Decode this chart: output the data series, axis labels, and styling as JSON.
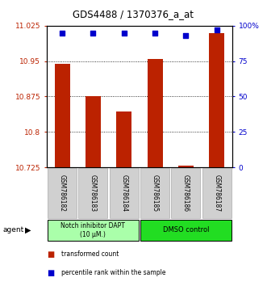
{
  "title": "GDS4488 / 1370376_a_at",
  "samples": [
    "GSM786182",
    "GSM786183",
    "GSM786184",
    "GSM786185",
    "GSM786186",
    "GSM786187"
  ],
  "bar_values": [
    10.945,
    10.875,
    10.843,
    10.955,
    10.728,
    11.01
  ],
  "percentile_values": [
    95,
    95,
    95,
    95,
    93,
    97
  ],
  "ylim_left": [
    10.725,
    11.025
  ],
  "ylim_right": [
    0,
    100
  ],
  "yticks_left": [
    10.725,
    10.8,
    10.875,
    10.95,
    11.025
  ],
  "yticks_right": [
    0,
    25,
    50,
    75,
    100
  ],
  "ytick_labels_left": [
    "10.725",
    "10.8",
    "10.875",
    "10.95",
    "11.025"
  ],
  "ytick_labels_right": [
    "0",
    "25",
    "50",
    "75",
    "100%"
  ],
  "bar_color": "#bb2200",
  "dot_color": "#0000cc",
  "group1_color": "#aaffaa",
  "group2_color": "#22dd22",
  "group1_label": "Notch inhibitor DAPT\n(10 μM.)",
  "group2_label": "DMSO control",
  "agent_label": "agent",
  "legend1_label": "transformed count",
  "legend2_label": "percentile rank within the sample",
  "group1_indices": [
    0,
    1,
    2
  ],
  "group2_indices": [
    3,
    4,
    5
  ],
  "bar_width": 0.5
}
